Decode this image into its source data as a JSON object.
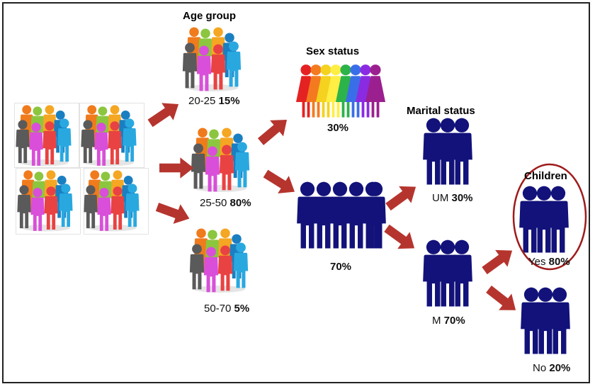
{
  "titles": {
    "age_group": "Age group",
    "sex_status": "Sex status",
    "marital_status": "Marital status",
    "children": "Children"
  },
  "age_groups": [
    {
      "range": "20-25",
      "percent": "15%"
    },
    {
      "range": "25-50",
      "percent": "80%"
    },
    {
      "range": "50-70",
      "percent": "5%"
    }
  ],
  "sex": {
    "women_percent": "30%",
    "men_percent": "70%"
  },
  "marital": [
    {
      "status": "UM",
      "percent": "30%"
    },
    {
      "status": "M",
      "percent": "70%"
    }
  ],
  "children": [
    {
      "answer": "Yes",
      "percent": "80%"
    },
    {
      "answer": "No",
      "percent": "20%"
    }
  ],
  "colors": {
    "arrow": "#b5352e",
    "navy_figure": "#12127a",
    "highlight_ring": "#9e1b1b",
    "crowd_people": [
      "#f07b1c",
      "#8cc63f",
      "#f5a623",
      "#1a7fc1",
      "#5a5a5a",
      "#d94fd9",
      "#e94242",
      "#29a8e0"
    ],
    "women": [
      "#e52222",
      "#f47a20",
      "#f4d21f",
      "#ffee44",
      "#2cb34a",
      "#3a6ee8",
      "#8a2be2",
      "#9b1f8f"
    ]
  },
  "icons": {
    "crowd": "crowd-icon",
    "women": "woman-icon",
    "men": "man-icon",
    "arrow": "arrow-icon"
  }
}
